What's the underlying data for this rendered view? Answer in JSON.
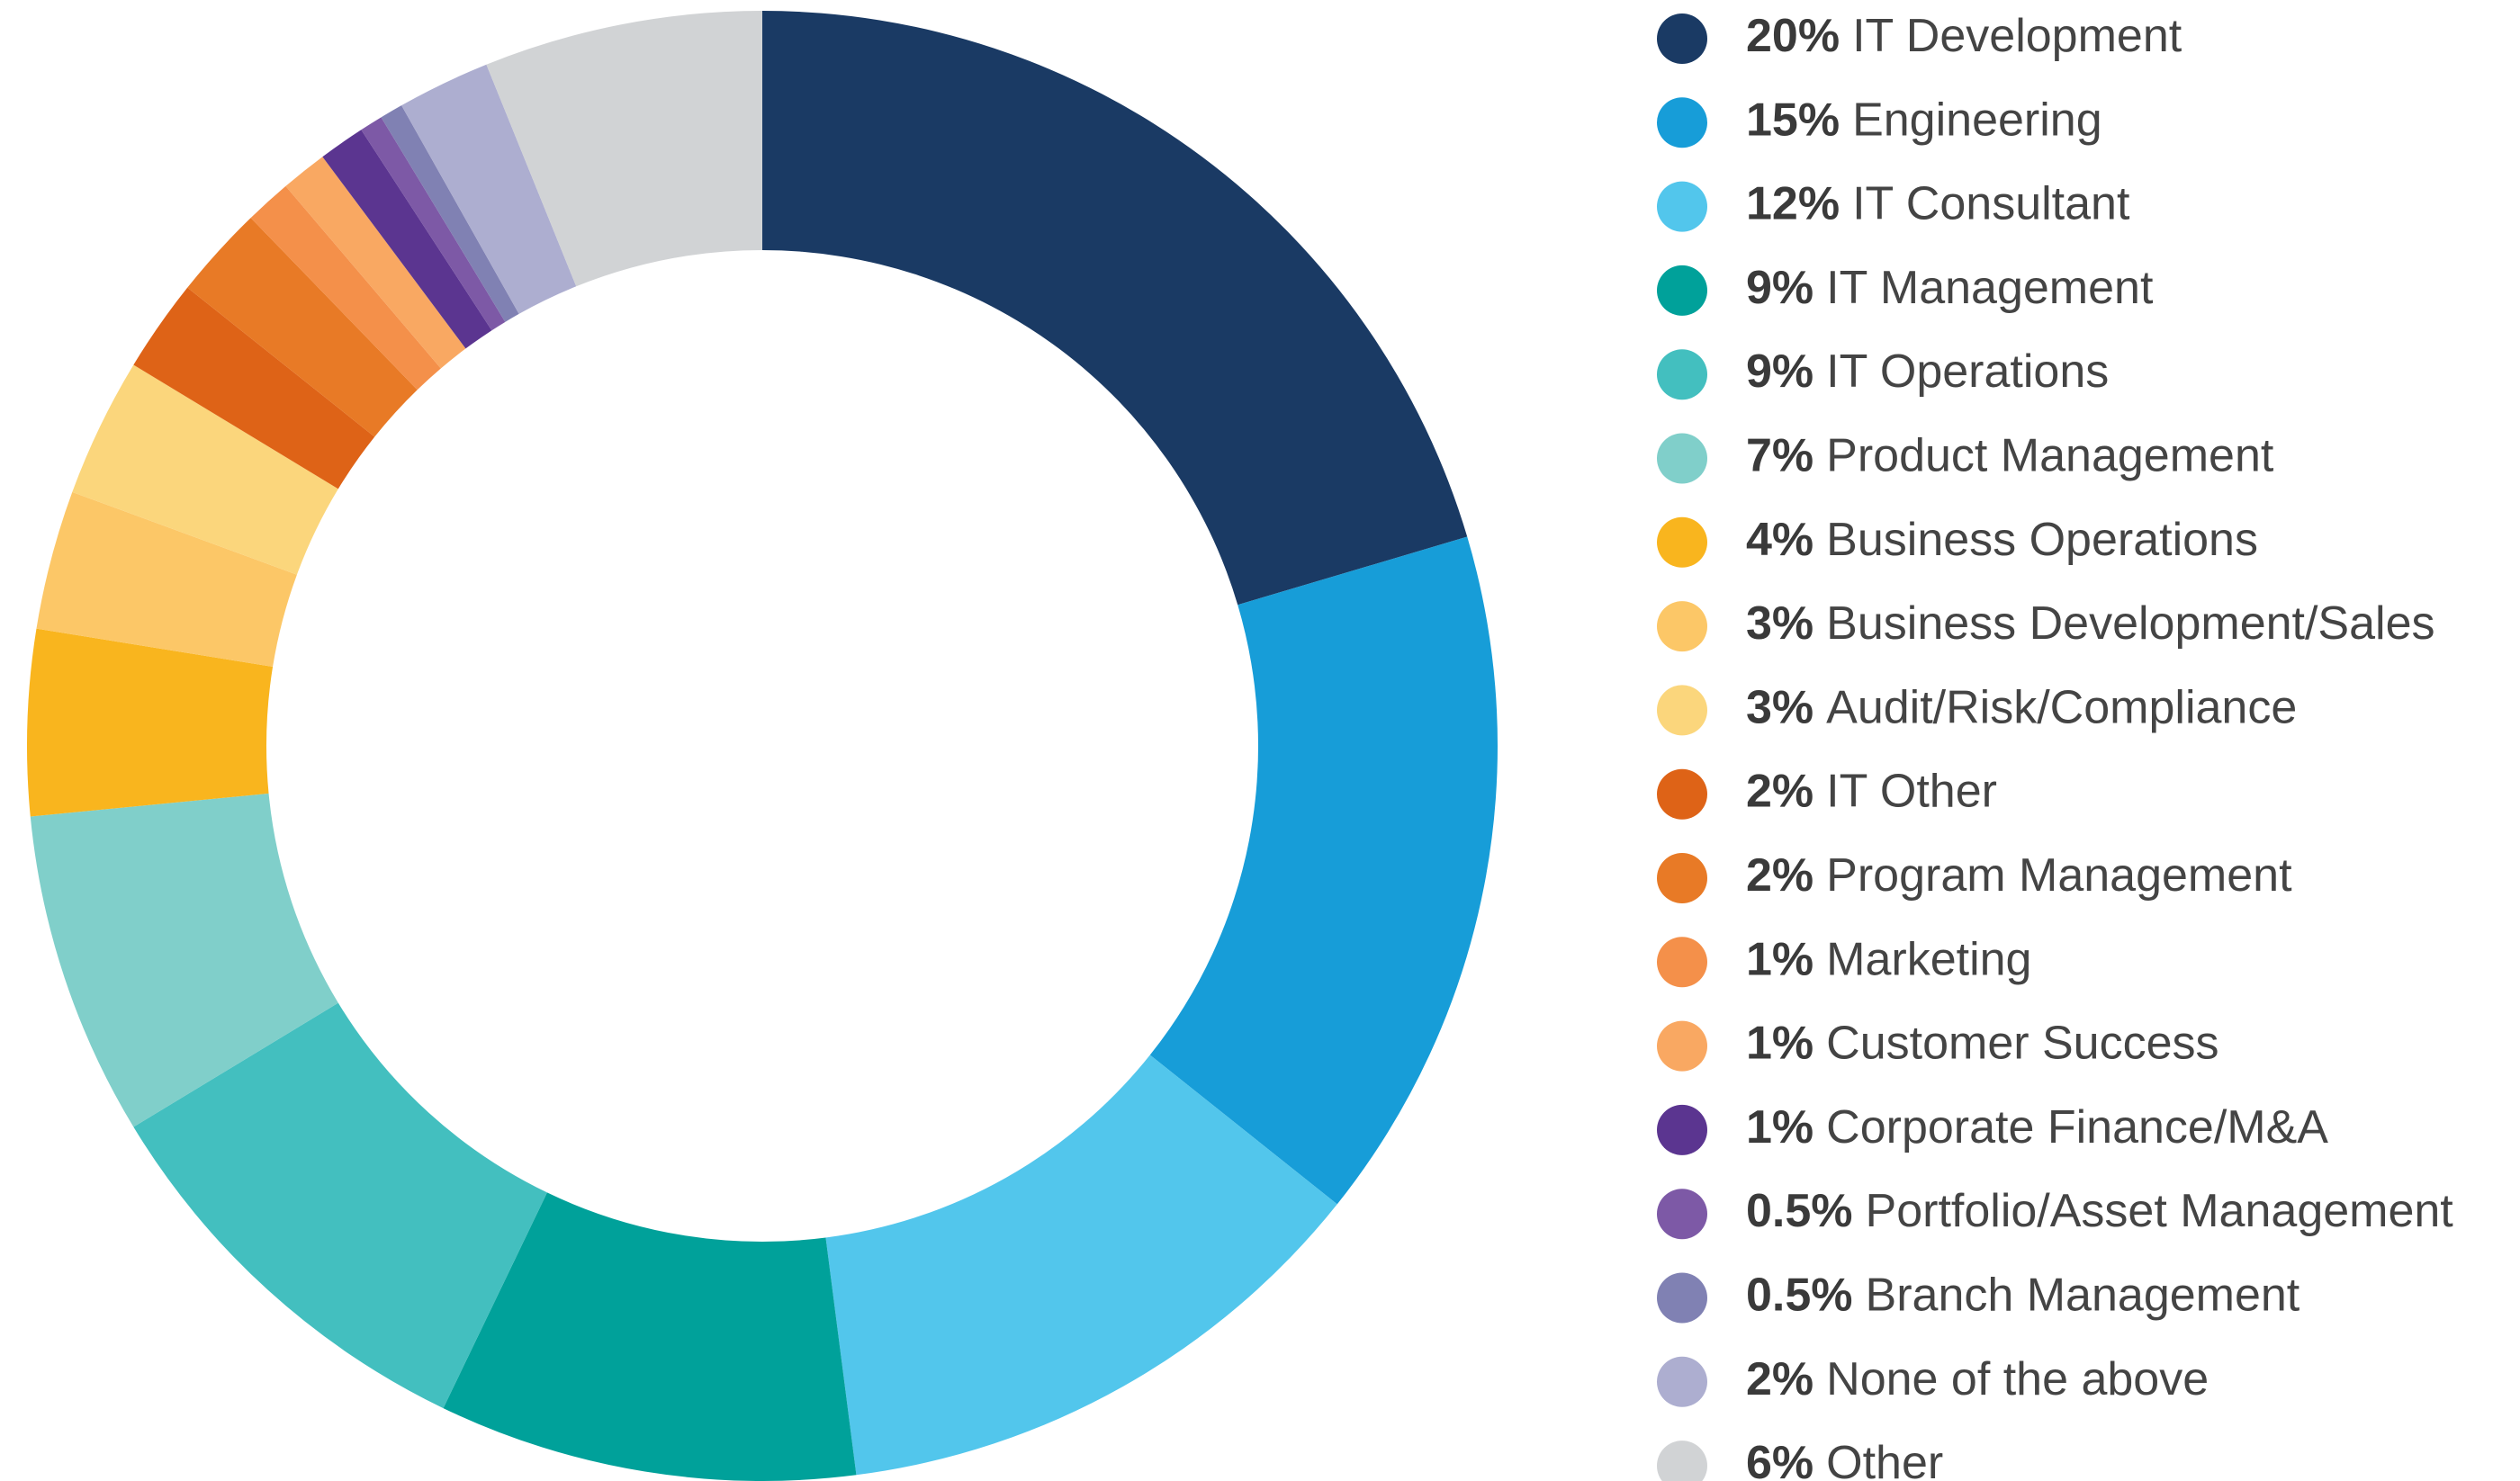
{
  "chart_data": {
    "type": "donut",
    "labels": [
      "IT Development",
      "Engineering",
      "IT Consultant",
      "IT Management",
      "IT Operations",
      "Product Management",
      "Business Operations",
      "Business Development/Sales",
      "Audit/Risk/Compliance",
      "IT Other",
      "Program Management",
      "Marketing",
      "Customer Success",
      "Corporate Finance/M&A",
      "Portfolio/Asset Management",
      "Branch Management",
      "None of the above",
      "Other"
    ],
    "values": [
      20,
      15,
      12,
      9,
      9,
      7,
      4,
      3,
      3,
      2,
      2,
      1,
      1,
      1,
      0.5,
      0.5,
      2,
      6
    ],
    "value_labels": [
      "20%",
      "15%",
      "12%",
      "9%",
      "9%",
      "7%",
      "4%",
      "3%",
      "3%",
      "2%",
      "2%",
      "1%",
      "1%",
      "1%",
      "0.5%",
      "0.5%",
      "2%",
      "6%"
    ],
    "colors": [
      "#1a3a64",
      "#179dd8",
      "#52c6ec",
      "#00a19a",
      "#43bfbf",
      "#80cfca",
      "#f9b51e",
      "#fcc767",
      "#fbd67c",
      "#de6317",
      "#e87a26",
      "#f4904a",
      "#f9a862",
      "#5b3590",
      "#7d59a6",
      "#8081b3",
      "#adaed0",
      "#d1d3d5"
    ],
    "legend": "right"
  }
}
